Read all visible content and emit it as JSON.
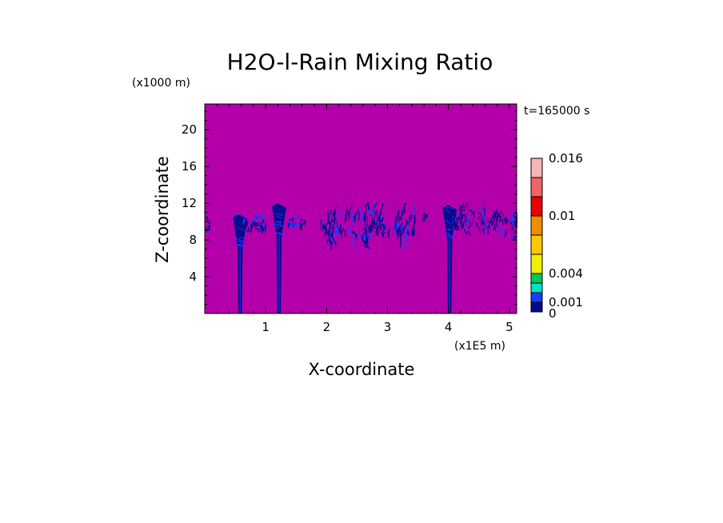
{
  "chart_data": {
    "type": "heatmap",
    "title": "H2O-l-Rain Mixing Ratio",
    "time_label": "t=165000 s",
    "xlabel": "X-coordinate",
    "ylabel": "Z-coordinate",
    "x_unit": "(x1E5 m)",
    "y_unit": "(x1000 m)",
    "xlim": [
      0,
      5.12
    ],
    "ylim": [
      0,
      22.8
    ],
    "x_ticks": [
      "1",
      "2",
      "3",
      "4",
      "5"
    ],
    "y_ticks": [
      "4",
      "8",
      "12",
      "16",
      "20"
    ],
    "colorbar": {
      "levels": [
        0,
        0.001,
        0.002,
        0.003,
        0.004,
        0.006,
        0.008,
        0.01,
        0.012,
        0.014,
        0.016
      ],
      "colors": [
        "#0a0a8c",
        "#1440ff",
        "#00e0c8",
        "#00c85a",
        "#f0f000",
        "#ffc800",
        "#f08c00",
        "#e60000",
        "#f06464",
        "#f8b4b4"
      ],
      "labels": [
        "0",
        "0.001",
        "0.004",
        "0.01",
        "0.016"
      ]
    },
    "background_color": "#b400aa",
    "features": [
      {
        "type": "shaft",
        "x": 0.58,
        "z_bottom": 0,
        "z_top": 10.8
      },
      {
        "type": "shaft",
        "x": 1.22,
        "z_bottom": 0,
        "z_top": 12.0
      },
      {
        "type": "shaft",
        "x": 4.02,
        "z_bottom": 0,
        "z_top": 11.8
      },
      {
        "type": "band",
        "x_start": 0,
        "x_end": 0.08,
        "z_low": 8.5,
        "z_high": 10.5
      },
      {
        "type": "band",
        "x_start": 0.62,
        "x_end": 1.0,
        "z_low": 8.6,
        "z_high": 11.2
      },
      {
        "type": "band",
        "x_start": 1.35,
        "x_end": 1.65,
        "z_low": 9.0,
        "z_high": 10.5
      },
      {
        "type": "band",
        "x_start": 1.9,
        "x_end": 3.45,
        "z_low": 7.0,
        "z_high": 12.0
      },
      {
        "type": "band",
        "x_start": 3.55,
        "x_end": 3.65,
        "z_low": 9.5,
        "z_high": 11.0
      },
      {
        "type": "band",
        "x_start": 4.0,
        "x_end": 4.6,
        "z_low": 8.5,
        "z_high": 12.0
      },
      {
        "type": "band",
        "x_start": 4.6,
        "x_end": 5.12,
        "z_low": 8.0,
        "z_high": 11.5
      }
    ]
  }
}
